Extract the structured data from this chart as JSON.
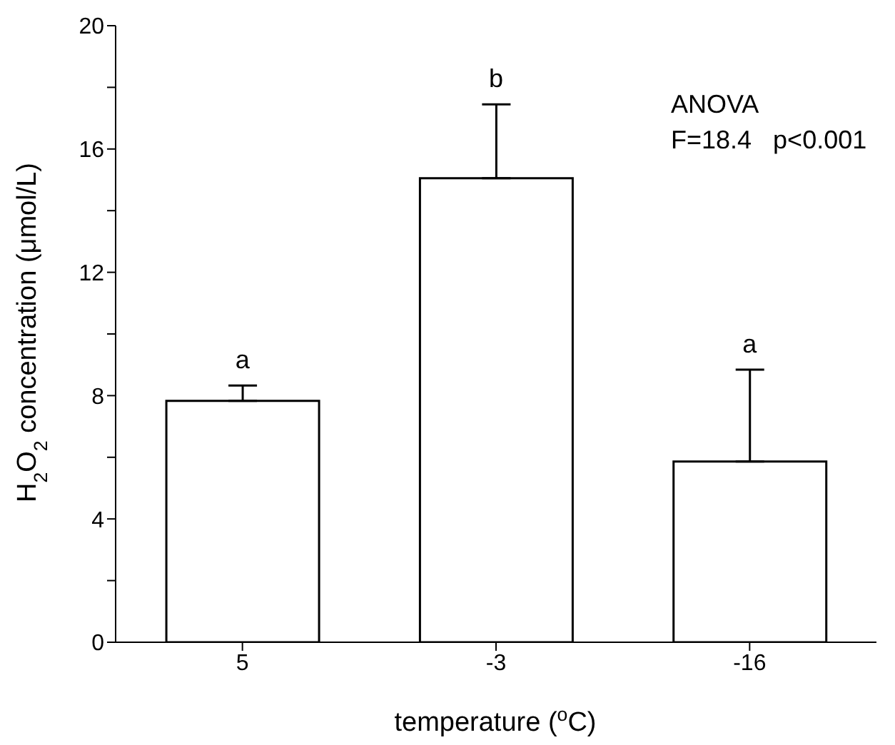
{
  "chart_data": {
    "type": "bar",
    "xlabel": "temperature ($^{o}$C)",
    "ylabel": "H$_{2}$O$_{2}$ concentration (μmol/L)",
    "categories": [
      "5",
      "-3",
      "-16"
    ],
    "values": [
      7.83,
      15.05,
      5.86
    ],
    "errors": [
      [
        7.83,
        8.33
      ],
      [
        15.05,
        17.45
      ],
      [
        5.86,
        8.84
      ]
    ],
    "color": "#ffffff",
    "ylim": [
      0,
      20
    ],
    "yticks": [
      0,
      {
        "value": 2,
        "label": null
      },
      4,
      {
        "value": 6,
        "label": null
      },
      8,
      {
        "value": 10,
        "label": null
      },
      12,
      {
        "value": 14,
        "label": null
      },
      16,
      {
        "value": 18,
        "label": null
      },
      20
    ],
    "grid": false,
    "legend": false,
    "annotations": [
      "a",
      "b",
      "a",
      "ANOVA",
      "F=18.4   p<0.001"
    ]
  }
}
